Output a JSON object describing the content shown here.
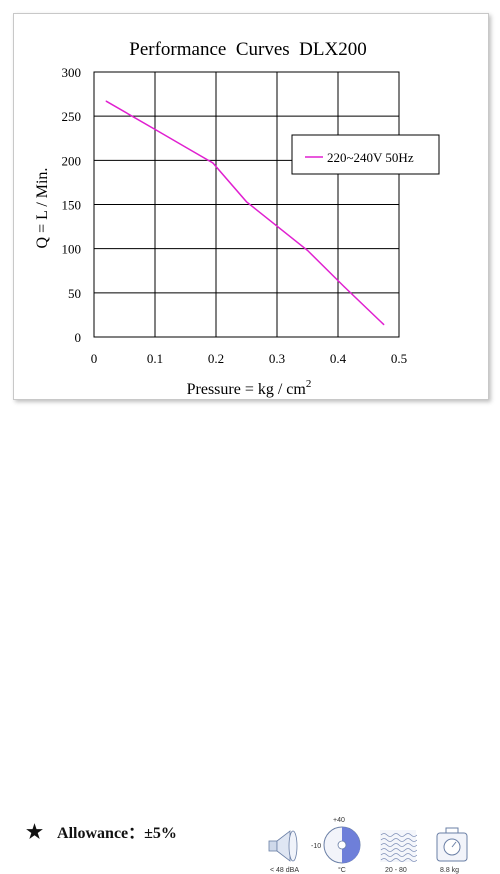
{
  "chart_data": {
    "type": "line",
    "title": "Performance  Curves  DLX200",
    "xlabel": "Pressure = kg / cm",
    "xlabel_sup": "2",
    "ylabel": "Q = L / Min.",
    "xlim": [
      0,
      0.5
    ],
    "ylim": [
      0,
      300
    ],
    "xticks": [
      "0",
      "0.1",
      "0.2",
      "0.3",
      "0.4",
      "0.5"
    ],
    "yticks": [
      "0",
      "50",
      "100",
      "150",
      "200",
      "250",
      "300"
    ],
    "grid": true,
    "legend_position": "top-right",
    "series": [
      {
        "name": "220~240V 50Hz",
        "color": "#e020d0",
        "x": [
          0.02,
          0.1,
          0.15,
          0.195,
          0.25,
          0.35,
          0.41,
          0.475
        ],
        "y": [
          267,
          235,
          215,
          197,
          153,
          98,
          57,
          14
        ]
      }
    ]
  },
  "footer": {
    "star": "★",
    "allowance": "Allowance：±5%",
    "icons": {
      "noise_label": "< 48 dBA",
      "temp_label": "°C",
      "temp_max": "+40",
      "temp_min": "-10",
      "humidity_label": "20 - 80",
      "weight_label": "8.8 kg"
    }
  }
}
